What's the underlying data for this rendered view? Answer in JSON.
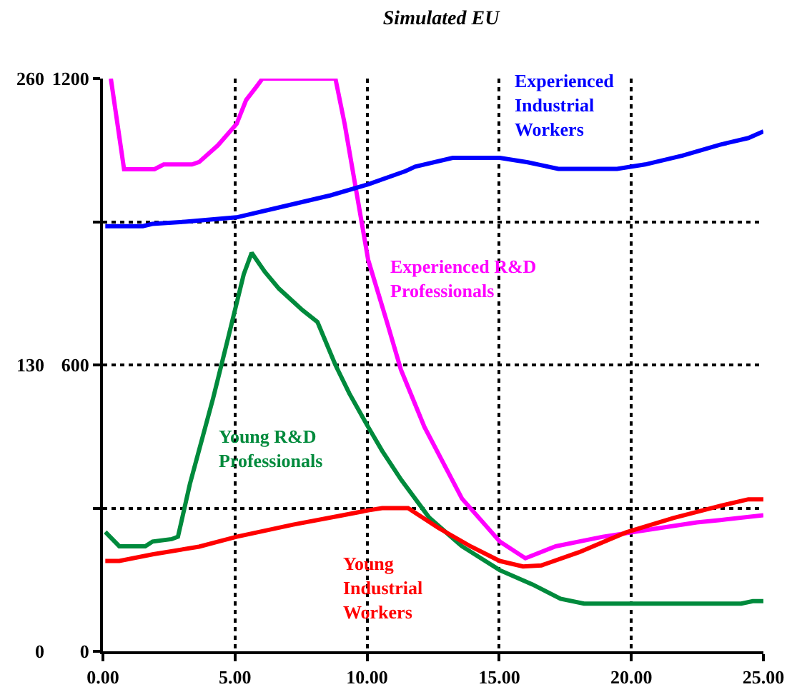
{
  "chart_data": {
    "type": "line",
    "title": "Simulated EU",
    "xlim": [
      0,
      25
    ],
    "xticks": [
      {
        "value": 0,
        "label": "0.00"
      },
      {
        "value": 5,
        "label": "5.00"
      },
      {
        "value": 10,
        "label": "10.00"
      },
      {
        "value": 15,
        "label": "15.00"
      },
      {
        "value": 20,
        "label": "20.00"
      },
      {
        "value": 25,
        "label": "25.00"
      }
    ],
    "ylim": [
      0,
      1200
    ],
    "yticks": [
      0,
      {
        "value": 300,
        "label": null
      },
      600,
      {
        "value": 900,
        "label": null
      },
      1200
    ],
    "y2lim": [
      0,
      260
    ],
    "y2ticks": [
      0,
      130,
      260
    ],
    "grid": true,
    "legend": false,
    "marker": "none",
    "line_style": "solid",
    "series": [
      {
        "name": "Experienced Industrial Workers",
        "color": "#0000ff",
        "axis": "y2",
        "x": [
          0.09,
          1.51,
          1.87,
          3.11,
          5.06,
          6.49,
          8.62,
          10.04,
          11.46,
          11.82,
          13.24,
          15.02,
          16.08,
          17.24,
          19.46,
          20.52,
          21.94,
          23.36,
          24.43,
          25
        ],
        "values": [
          193,
          193,
          194,
          195,
          197,
          201,
          207,
          212,
          218,
          220,
          224,
          224,
          222,
          219,
          219,
          221,
          225,
          230,
          233,
          236
        ]
      },
      {
        "name": "Experienced R&D Professionals",
        "color": "#ff00ff",
        "x": [
          0.3,
          0.8,
          1.95,
          2.3,
          3.37,
          3.64,
          4.35,
          5.06,
          5.42,
          5.77,
          6.04,
          8.8,
          9.15,
          10.04,
          10.75,
          11.28,
          12.17,
          13.59,
          15.02,
          15.99,
          17.14,
          18.92,
          20.7,
          22.48,
          23.37,
          25
        ],
        "values": [
          1200,
          1010,
          1010,
          1020,
          1020,
          1025,
          1060,
          1105,
          1155,
          1180,
          1200,
          1200,
          1105,
          820,
          690,
          590,
          470,
          320,
          230,
          195,
          220,
          240,
          255,
          270,
          275,
          285
        ]
      },
      {
        "name": "Young R&D Professionals",
        "color": "#008a3c",
        "x": [
          0.09,
          0.62,
          1.6,
          1.88,
          2.6,
          2.84,
          3.29,
          4.17,
          4.71,
          5.33,
          5.63,
          6.13,
          6.66,
          7.55,
          8.12,
          8.8,
          9.33,
          10.04,
          10.57,
          11.28,
          12.35,
          13.59,
          15.02,
          16.26,
          17.32,
          18.21,
          24.16,
          24.6,
          25
        ],
        "values": [
          250,
          220,
          220,
          230,
          235,
          240,
          350,
          530,
          650,
          790,
          835,
          795,
          760,
          715,
          690,
          600,
          540,
          470,
          420,
          360,
          280,
          220,
          170,
          140,
          110,
          100,
          100,
          105,
          105
        ]
      },
      {
        "name": "Young Industrial Workers",
        "color": "#ff0000",
        "axis": "y2",
        "x": [
          0.09,
          0.62,
          1.88,
          3.64,
          5.06,
          7.2,
          8.97,
          10.04,
          10.57,
          11.55,
          12.7,
          13.94,
          15.02,
          15.9,
          16.6,
          18.03,
          19.81,
          21.59,
          23.36,
          24.43,
          25
        ],
        "values": [
          41,
          41,
          44,
          47.5,
          52,
          57.5,
          61.5,
          64,
          65,
          65,
          56,
          47.5,
          41,
          38.5,
          39,
          45,
          54,
          60.5,
          66,
          69,
          69
        ]
      }
    ]
  }
}
